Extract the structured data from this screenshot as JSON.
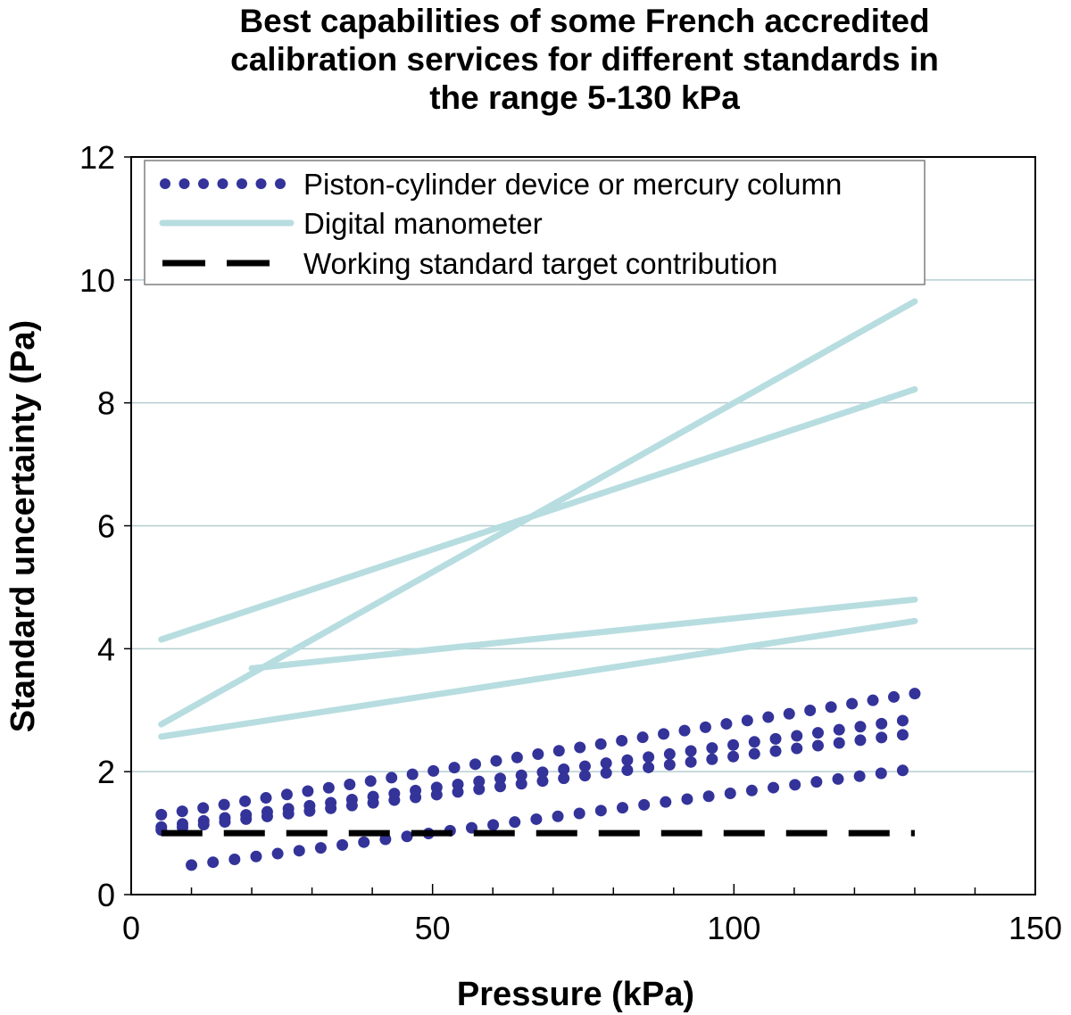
{
  "chart_data": {
    "type": "line",
    "title_lines": [
      "Best capabilities of some French accredited",
      "calibration services for different standards in",
      "the range 5-130 kPa"
    ],
    "xlabel": "Pressure (kPa)",
    "ylabel": "Standard uncertainty (Pa)",
    "xlim": [
      0,
      150
    ],
    "ylim": [
      0,
      12
    ],
    "xticks": [
      0,
      50,
      100,
      150
    ],
    "yticks": [
      0,
      2,
      4,
      6,
      8,
      10,
      12
    ],
    "grid": "horizontal",
    "legend_position": "top-left",
    "legend": [
      {
        "label": "Piston-cylinder device or mercury column",
        "style": "dotted",
        "color": "#33339a"
      },
      {
        "label": "Digital manometer",
        "style": "solid",
        "color": "#b7dde0"
      },
      {
        "label": "Working standard target contribution",
        "style": "dashed",
        "color": "#000000"
      }
    ],
    "series": [
      {
        "name": "Digital manometer",
        "style": "solid",
        "color": "#b7dde0",
        "x": [
          5,
          130
        ],
        "y": [
          4.15,
          8.22
        ]
      },
      {
        "name": "Digital manometer",
        "style": "solid",
        "color": "#b7dde0",
        "x": [
          5,
          130
        ],
        "y": [
          2.77,
          9.65
        ]
      },
      {
        "name": "Digital manometer",
        "style": "solid",
        "color": "#b7dde0",
        "x": [
          20,
          130
        ],
        "y": [
          3.68,
          4.8
        ]
      },
      {
        "name": "Digital manometer",
        "style": "solid",
        "color": "#b7dde0",
        "x": [
          5,
          130
        ],
        "y": [
          2.57,
          4.45
        ]
      },
      {
        "name": "Piston-cylinder device or mercury column",
        "style": "dotted",
        "color": "#33339a",
        "x": [
          5,
          130
        ],
        "y": [
          1.3,
          3.27
        ]
      },
      {
        "name": "Piston-cylinder device or mercury column",
        "style": "dotted",
        "color": "#33339a",
        "x": [
          5,
          128
        ],
        "y": [
          1.1,
          2.83
        ]
      },
      {
        "name": "Piston-cylinder device or mercury column",
        "style": "dotted",
        "color": "#33339a",
        "x": [
          5,
          128
        ],
        "y": [
          1.05,
          2.6
        ]
      },
      {
        "name": "Piston-cylinder device or mercury column",
        "style": "dotted",
        "color": "#33339a",
        "x": [
          10,
          128
        ],
        "y": [
          0.48,
          2.02
        ]
      },
      {
        "name": "Working standard target contribution",
        "style": "dashed",
        "color": "#000000",
        "x": [
          5,
          130
        ],
        "y": [
          1.0,
          1.0
        ]
      }
    ]
  }
}
